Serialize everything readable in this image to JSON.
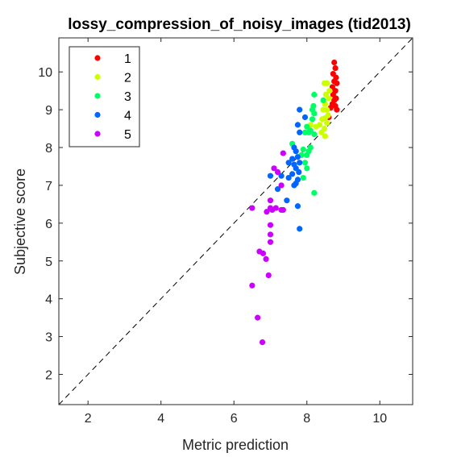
{
  "chart_data": {
    "type": "scatter",
    "title": "lossy_compression_of_noisy_images (tid2013)",
    "xlabel": "Metric prediction",
    "ylabel": "Subjective score",
    "xlim": [
      1.2,
      10.9
    ],
    "ylim": [
      1.2,
      10.9
    ],
    "xticks": [
      2,
      4,
      6,
      8,
      10
    ],
    "yticks": [
      2,
      3,
      4,
      5,
      6,
      7,
      8,
      9,
      10
    ],
    "grid": false,
    "legend_position": "top-left",
    "reference_line": "dashed diagonal y = x",
    "series": [
      {
        "name": "1",
        "color": "#ff0000",
        "points": [
          [
            8.75,
            10.25
          ],
          [
            8.78,
            10.1
          ],
          [
            8.72,
            9.95
          ],
          [
            8.8,
            9.85
          ],
          [
            8.75,
            9.75
          ],
          [
            8.82,
            9.7
          ],
          [
            8.7,
            9.6
          ],
          [
            8.78,
            9.5
          ],
          [
            8.72,
            9.4
          ],
          [
            8.8,
            9.3
          ],
          [
            8.75,
            9.25
          ],
          [
            8.7,
            9.15
          ],
          [
            8.78,
            9.1
          ],
          [
            8.82,
            9.0
          ],
          [
            8.65,
            9.05
          ],
          [
            8.6,
            8.8
          ]
        ]
      },
      {
        "name": "2",
        "color": "#ccff00",
        "points": [
          [
            8.48,
            9.7
          ],
          [
            8.55,
            9.7
          ],
          [
            8.62,
            9.5
          ],
          [
            8.52,
            9.4
          ],
          [
            8.6,
            9.3
          ],
          [
            8.5,
            9.15
          ],
          [
            8.45,
            9.0
          ],
          [
            8.55,
            9.0
          ],
          [
            8.58,
            8.85
          ],
          [
            8.5,
            8.78
          ],
          [
            8.42,
            8.75
          ],
          [
            8.55,
            8.65
          ],
          [
            8.35,
            8.6
          ],
          [
            8.25,
            8.55
          ],
          [
            8.48,
            8.5
          ],
          [
            8.4,
            8.4
          ],
          [
            8.5,
            8.3
          ],
          [
            8.1,
            8.6
          ],
          [
            8.05,
            8.55
          ]
        ]
      },
      {
        "name": "3",
        "color": "#00ff66",
        "points": [
          [
            8.2,
            9.4
          ],
          [
            8.45,
            9.25
          ],
          [
            8.18,
            9.1
          ],
          [
            8.15,
            9.0
          ],
          [
            8.2,
            8.9
          ],
          [
            8.15,
            8.75
          ],
          [
            8.0,
            8.55
          ],
          [
            8.05,
            8.4
          ],
          [
            8.1,
            8.45
          ],
          [
            8.2,
            8.35
          ],
          [
            7.95,
            8.4
          ],
          [
            8.1,
            8.0
          ],
          [
            8.05,
            7.9
          ],
          [
            8.0,
            7.8
          ],
          [
            7.9,
            7.95
          ],
          [
            7.85,
            7.8
          ],
          [
            7.6,
            8.1
          ],
          [
            7.95,
            7.6
          ],
          [
            8.0,
            7.45
          ],
          [
            7.9,
            7.2
          ],
          [
            8.2,
            6.8
          ]
        ]
      },
      {
        "name": "4",
        "color": "#0066ff",
        "points": [
          [
            7.8,
            9.0
          ],
          [
            7.95,
            8.8
          ],
          [
            7.75,
            8.6
          ],
          [
            7.8,
            8.4
          ],
          [
            7.65,
            8.0
          ],
          [
            7.7,
            7.9
          ],
          [
            7.75,
            7.75
          ],
          [
            7.6,
            7.7
          ],
          [
            7.8,
            7.6
          ],
          [
            7.65,
            7.55
          ],
          [
            7.5,
            7.6
          ],
          [
            7.7,
            7.45
          ],
          [
            7.78,
            7.35
          ],
          [
            7.6,
            7.3
          ],
          [
            7.5,
            7.2
          ],
          [
            7.75,
            7.15
          ],
          [
            7.7,
            7.05
          ],
          [
            7.65,
            7.0
          ],
          [
            7.3,
            7.25
          ],
          [
            7.0,
            7.25
          ],
          [
            7.2,
            6.9
          ],
          [
            7.45,
            6.6
          ],
          [
            7.75,
            6.45
          ],
          [
            7.8,
            5.85
          ]
        ]
      },
      {
        "name": "5",
        "color": "#cc00ff",
        "points": [
          [
            7.35,
            7.85
          ],
          [
            7.1,
            7.45
          ],
          [
            7.2,
            7.35
          ],
          [
            7.3,
            7.0
          ],
          [
            7.0,
            6.6
          ],
          [
            7.0,
            6.4
          ],
          [
            6.9,
            6.3
          ],
          [
            7.05,
            6.35
          ],
          [
            7.15,
            6.4
          ],
          [
            7.3,
            6.35
          ],
          [
            7.35,
            6.35
          ],
          [
            6.5,
            6.4
          ],
          [
            7.0,
            5.95
          ],
          [
            7.0,
            5.7
          ],
          [
            7.0,
            5.5
          ],
          [
            6.7,
            5.25
          ],
          [
            6.8,
            5.2
          ],
          [
            6.88,
            5.05
          ],
          [
            6.95,
            4.62
          ],
          [
            6.5,
            4.35
          ],
          [
            6.65,
            3.5
          ],
          [
            6.78,
            2.85
          ]
        ]
      }
    ]
  }
}
